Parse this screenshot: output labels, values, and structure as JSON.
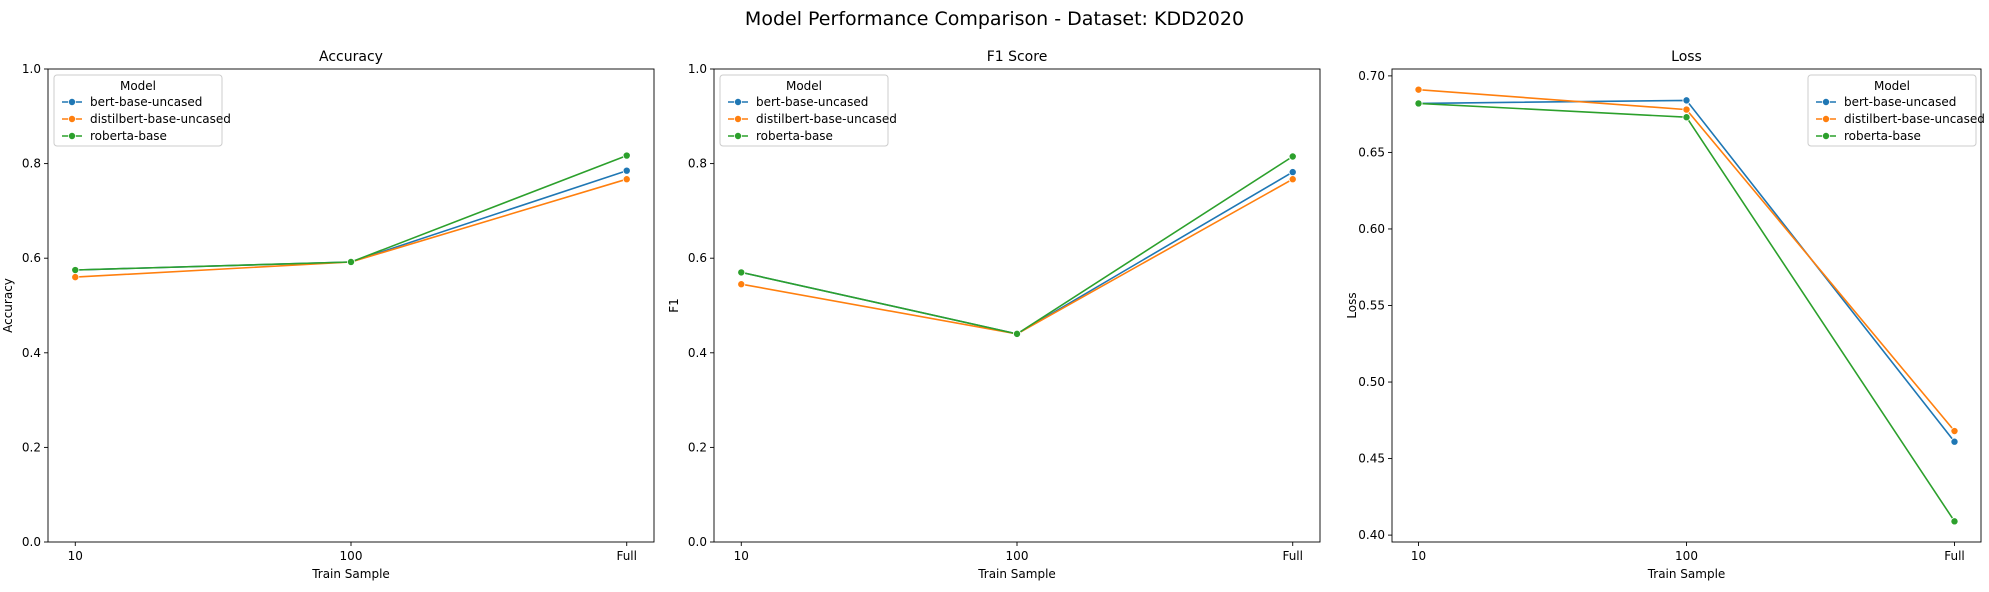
{
  "figure": {
    "title": "Model Performance Comparison - Dataset: KDD2020"
  },
  "legend": {
    "title": "Model"
  },
  "colors": {
    "bert-base-uncased": "#1f77b4",
    "distilbert-base-uncased": "#ff7f0e",
    "roberta-base": "#2ca02c"
  },
  "chart_data": [
    {
      "type": "line",
      "title": "Accuracy",
      "xlabel": "Train Sample",
      "ylabel": "Accuracy",
      "categories": [
        "10",
        "100",
        "Full"
      ],
      "ylim": [
        0.0,
        1.0
      ],
      "yticks": [
        "0.0",
        "0.2",
        "0.4",
        "0.6",
        "0.8",
        "1.0"
      ],
      "legend_position": "upper-left",
      "grid": false,
      "series": [
        {
          "name": "bert-base-uncased",
          "values": [
            0.575,
            0.592,
            0.785
          ]
        },
        {
          "name": "distilbert-base-uncased",
          "values": [
            0.56,
            0.592,
            0.767
          ]
        },
        {
          "name": "roberta-base",
          "values": [
            0.575,
            0.592,
            0.817
          ]
        }
      ]
    },
    {
      "type": "line",
      "title": "F1 Score",
      "xlabel": "Train Sample",
      "ylabel": "F1",
      "categories": [
        "10",
        "100",
        "Full"
      ],
      "ylim": [
        0.0,
        1.0
      ],
      "yticks": [
        "0.0",
        "0.2",
        "0.4",
        "0.6",
        "0.8",
        "1.0"
      ],
      "legend_position": "upper-left",
      "grid": false,
      "series": [
        {
          "name": "bert-base-uncased",
          "values": [
            0.57,
            0.44,
            0.782
          ]
        },
        {
          "name": "distilbert-base-uncased",
          "values": [
            0.545,
            0.44,
            0.767
          ]
        },
        {
          "name": "roberta-base",
          "values": [
            0.57,
            0.44,
            0.815
          ]
        }
      ]
    },
    {
      "type": "line",
      "title": "Loss",
      "xlabel": "Train Sample",
      "ylabel": "Loss",
      "categories": [
        "10",
        "100",
        "Full"
      ],
      "ylim": [
        0.3955,
        0.7045
      ],
      "yticks": [
        "0.40",
        "0.45",
        "0.50",
        "0.55",
        "0.60",
        "0.65",
        "0.70"
      ],
      "legend_position": "upper-right",
      "grid": false,
      "series": [
        {
          "name": "bert-base-uncased",
          "values": [
            0.682,
            0.684,
            0.461
          ]
        },
        {
          "name": "distilbert-base-uncased",
          "values": [
            0.691,
            0.678,
            0.468
          ]
        },
        {
          "name": "roberta-base",
          "values": [
            0.682,
            0.673,
            0.409
          ]
        }
      ]
    }
  ]
}
